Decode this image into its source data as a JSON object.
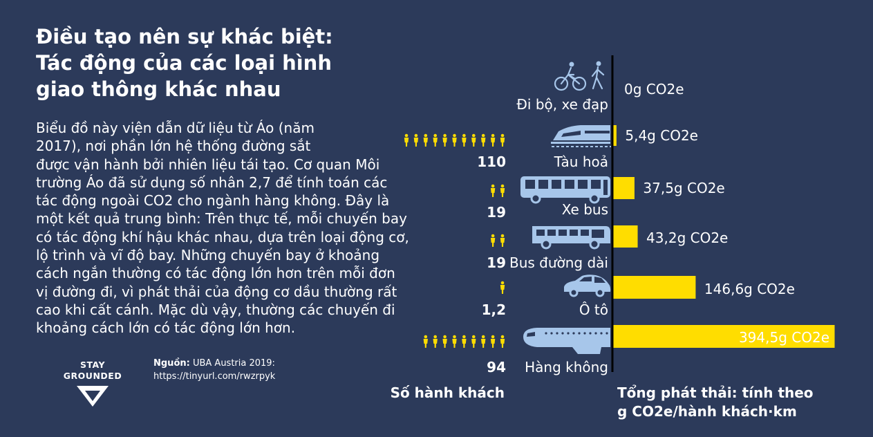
{
  "title_lines": [
    "Điều tạo nên sự khác biệt:",
    "Tác động của các loại hình",
    "giao thông khác nhau"
  ],
  "body_lines": [
    " Biểu đồ này viện dẫn dữ liệu từ Áo (năm",
    " 2017), nơi phần lớn hệ thống đường sắt",
    "được vận hành bởi nhiên liệu tái tạo. Cơ quan Môi",
    "trường Áo đã sử dụng số nhân 2,7 để tính toán các",
    "tác động ngoài CO2 cho ngành hàng không. Đây là",
    "một kết quả trung bình: Trên thực tế, mỗi chuyến bay",
    "có tác động khí hậu khác nhau, dựa trên loại động cơ,",
    "lộ trình và vĩ độ bay. Những chuyến bay ở khoảng",
    "cách ngắn thường có tác động lớn hơn trên mỗi đơn",
    "vị đường đi, vì phát thải của động cơ dầu thường rất",
    "cao khi cất cánh. Mặc dù vậy, thường các chuyến đi",
    "khoảng cách lớn có tác động lớn hơn."
  ],
  "logo": {
    "line1": "STAY",
    "line2": "GROUNDED"
  },
  "source": {
    "label": "Nguồn:",
    "text": " UBA Austria 2019:",
    "url": "https://tinyurl.com/rwzrpyk"
  },
  "colors": {
    "background": "#2c3a5a",
    "bar": "#ffdd00",
    "icon": "#a7c6ea",
    "text": "#ffffff",
    "bar_label_inside": "#2c3a5a"
  },
  "chart_data": {
    "type": "bar",
    "orientation": "horizontal",
    "xlabel": "Tổng phát thải: tính theo g CO2e/hành khách·km",
    "xlabel_lines": [
      "Tổng phát thải: tính theo",
      "g CO2e/hành khách·km"
    ],
    "left_column_label": "Số hành khách",
    "categories": [
      "Đi bộ, xe đạp",
      "Tàu hoả",
      "Xe bus",
      "Bus đường dài",
      "Ô tô",
      "Hàng không"
    ],
    "values": [
      0,
      5.4,
      37.5,
      43.2,
      146.6,
      394.5
    ],
    "value_labels": [
      "0g CO2e",
      "5,4g CO2e",
      "37,5g CO2e",
      "43,2g CO2e",
      "146,6g CO2e",
      "394,5g CO2e"
    ],
    "passengers": [
      "",
      "110",
      "19",
      "19",
      "1,2",
      "94"
    ],
    "passenger_icon_counts": [
      0,
      11,
      2,
      2,
      1,
      9
    ],
    "icons": [
      "walk-bicycle-icon",
      "train-icon",
      "bus-icon",
      "coach-icon",
      "car-icon",
      "airplane-icon"
    ],
    "xlim": [
      0,
      394.5
    ]
  }
}
